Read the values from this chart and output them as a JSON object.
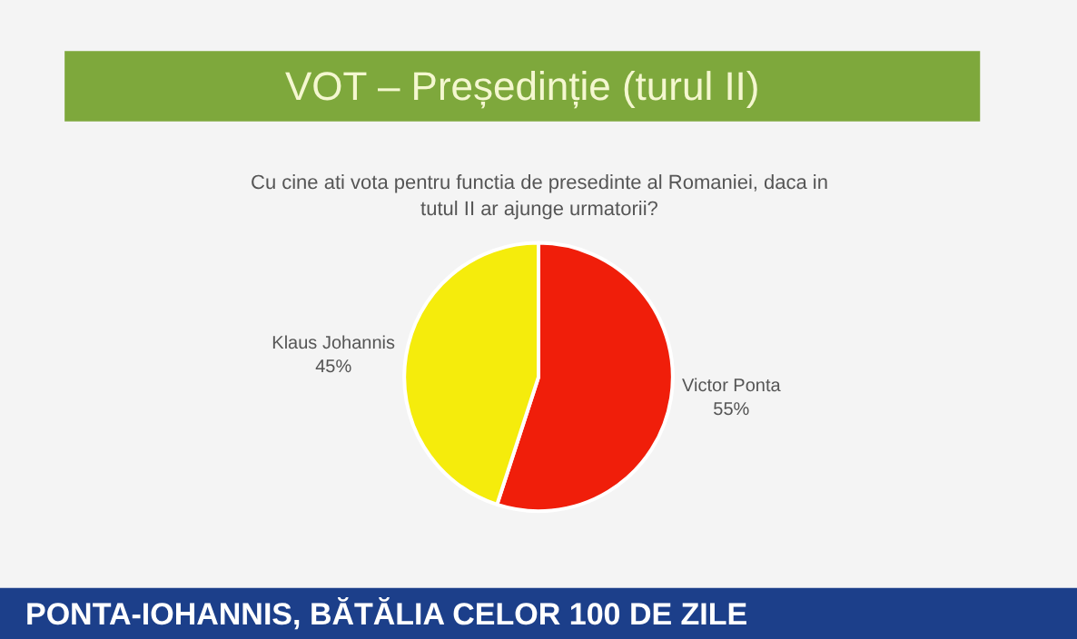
{
  "chart_data": {
    "type": "pie",
    "title": "VOT – Președinție (turul II)",
    "subtitle": "Cu cine ati vota pentru functia de presedinte al Romaniei, daca in tutul II ar ajunge urmatorii?",
    "categories": [
      "Victor Ponta",
      "Klaus Johannis"
    ],
    "values": [
      55,
      45
    ],
    "value_labels": [
      "55%",
      "45%"
    ],
    "colors": [
      "#f01e0a",
      "#f5ec0c"
    ],
    "annotations": [
      "PONTA-IOHANNIS, BĂTĂLIA CELOR 100 DE ZILE"
    ],
    "legend": false
  }
}
